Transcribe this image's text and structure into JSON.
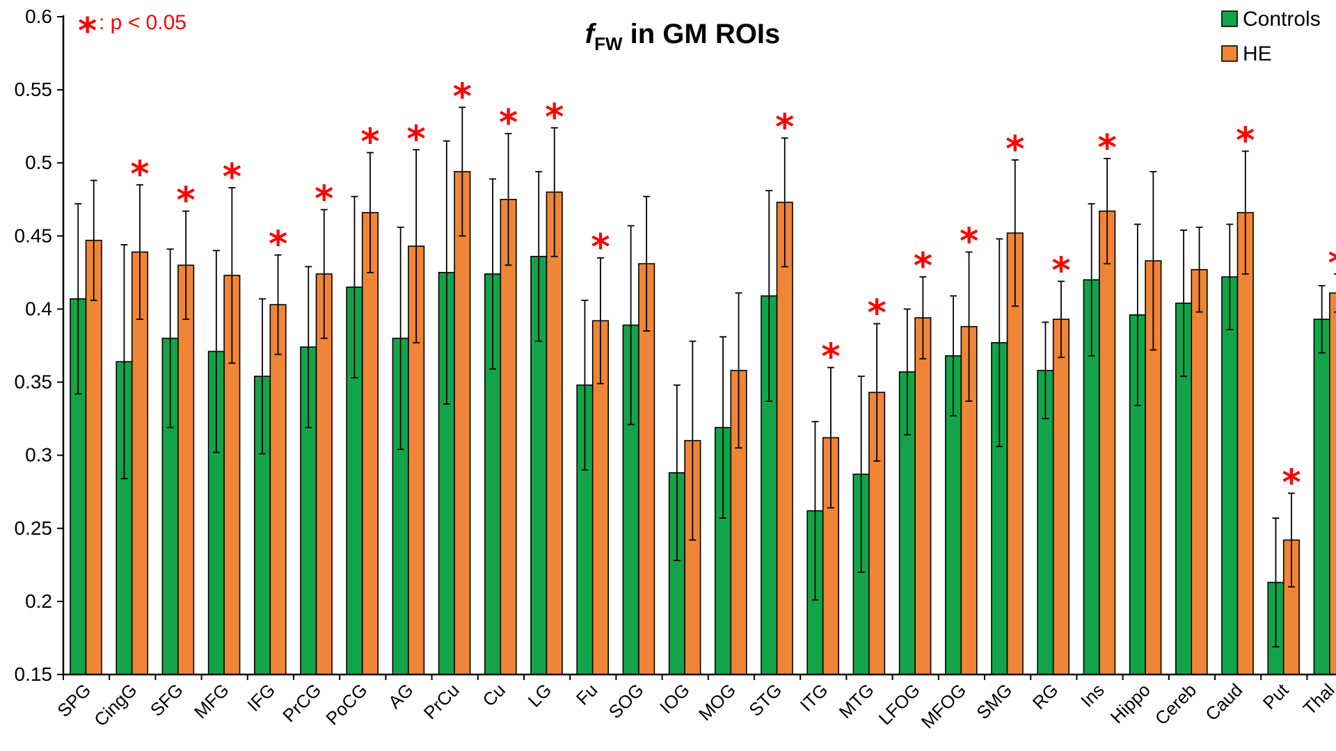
{
  "chart_data": {
    "type": "bar",
    "title": {
      "italic": "f",
      "subscript": "FW",
      "rest": " in GM ROIs"
    },
    "significance_note": {
      "symbol": "*",
      "text": ": p < 0.05"
    },
    "xlabel": "",
    "ylabel": "",
    "ylim": [
      0.15,
      0.6
    ],
    "yticks": [
      0.15,
      0.2,
      0.25,
      0.3,
      0.35,
      0.4,
      0.45,
      0.5,
      0.55,
      0.6
    ],
    "ytick_labels": [
      "0.15",
      "0.2",
      "0.25",
      "0.3",
      "0.35",
      "0.4",
      "0.45",
      "0.5",
      "0.55",
      "0.6"
    ],
    "legend_position": "top-right",
    "categories": [
      "SPG",
      "CingG",
      "SFG",
      "MFG",
      "IFG",
      "PrCG",
      "PoCG",
      "AG",
      "PrCu",
      "Cu",
      "LG",
      "Fu",
      "SOG",
      "IOG",
      "MOG",
      "STG",
      "ITG",
      "MTG",
      "LFOG",
      "MFOG",
      "SMG",
      "RG",
      "Ins",
      "Hippo",
      "Cereb",
      "Caud",
      "Put",
      "Thal"
    ],
    "series": [
      {
        "name": "Controls",
        "color": "#13a44a",
        "values": [
          0.407,
          0.364,
          0.38,
          0.371,
          0.354,
          0.374,
          0.415,
          0.38,
          0.425,
          0.424,
          0.436,
          0.348,
          0.389,
          0.288,
          0.319,
          0.409,
          0.262,
          0.287,
          0.357,
          0.368,
          0.377,
          0.358,
          0.42,
          0.396,
          0.404,
          0.422,
          0.213,
          0.393
        ],
        "errors": [
          0.065,
          0.08,
          0.061,
          0.069,
          0.053,
          0.055,
          0.062,
          0.076,
          0.09,
          0.065,
          0.058,
          0.058,
          0.068,
          0.06,
          0.062,
          0.072,
          0.061,
          0.067,
          0.043,
          0.041,
          0.071,
          0.033,
          0.052,
          0.062,
          0.05,
          0.036,
          0.044,
          0.023
        ]
      },
      {
        "name": "HE",
        "color": "#ef8536",
        "values": [
          0.447,
          0.439,
          0.43,
          0.423,
          0.403,
          0.424,
          0.466,
          0.443,
          0.494,
          0.475,
          0.48,
          0.392,
          0.431,
          0.31,
          0.358,
          0.473,
          0.312,
          0.343,
          0.394,
          0.388,
          0.452,
          0.393,
          0.467,
          0.433,
          0.427,
          0.466,
          0.242,
          0.411
        ],
        "errors": [
          0.041,
          0.046,
          0.037,
          0.06,
          0.034,
          0.044,
          0.041,
          0.066,
          0.044,
          0.045,
          0.044,
          0.043,
          0.046,
          0.068,
          0.053,
          0.044,
          0.048,
          0.047,
          0.028,
          0.051,
          0.05,
          0.026,
          0.036,
          0.061,
          0.029,
          0.042,
          0.032,
          0.013
        ]
      }
    ],
    "significant": [
      false,
      true,
      true,
      true,
      true,
      true,
      true,
      true,
      true,
      true,
      true,
      true,
      false,
      false,
      false,
      true,
      true,
      true,
      true,
      true,
      true,
      true,
      true,
      false,
      false,
      true,
      true,
      true
    ]
  }
}
